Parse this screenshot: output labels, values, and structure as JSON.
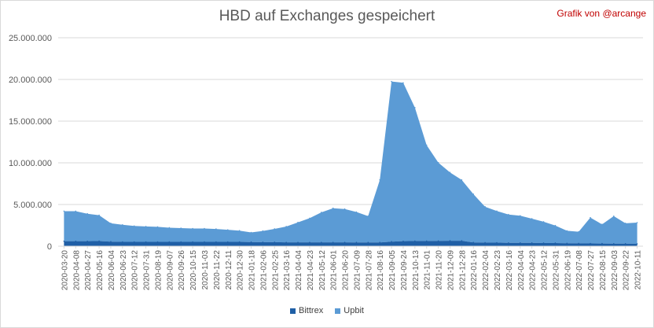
{
  "credit": "Grafik von @arcange",
  "colors": {
    "bittrex": "#1f5fa6",
    "upbit": "#5b9bd5",
    "grid": "#d9d9d9",
    "text": "#595959"
  },
  "chart_data": {
    "type": "area",
    "stacked": true,
    "title": "HBD auf Exchanges gespeichert",
    "xlabel": "",
    "ylabel": "",
    "ylim": [
      0,
      25000000
    ],
    "y_ticks": [
      "0",
      "5.000.000",
      "10.000.000",
      "15.000.000",
      "20.000.000",
      "25.000.000"
    ],
    "grid": "horizontal",
    "legend_position": "bottom",
    "x": [
      "2020-03-20",
      "2020-04-08",
      "2020-04-27",
      "2020-05-16",
      "2020-06-04",
      "2020-06-23",
      "2020-07-12",
      "2020-07-31",
      "2020-08-19",
      "2020-09-07",
      "2020-09-26",
      "2020-10-15",
      "2020-11-03",
      "2020-11-22",
      "2020-12-11",
      "2020-12-30",
      "2021-01-18",
      "2021-02-06",
      "2021-02-25",
      "2021-03-16",
      "2021-04-04",
      "2021-04-23",
      "2021-05-12",
      "2021-06-01",
      "2021-06-20",
      "2021-07-09",
      "2021-07-28",
      "2021-08-16",
      "2021-09-05",
      "2021-09-24",
      "2021-10-13",
      "2021-11-01",
      "2021-11-20",
      "2021-12-09",
      "2021-12-28",
      "2022-01-16",
      "2022-02-04",
      "2022-02-23",
      "2022-03-16",
      "2022-04-04",
      "2022-04-23",
      "2022-05-12",
      "2022-05-31",
      "2022-06-19",
      "2022-07-08",
      "2022-07-27",
      "2022-08-15",
      "2022-09-03",
      "2022-09-22",
      "2022-10-11"
    ],
    "series": [
      {
        "name": "Bittrex",
        "values": [
          600000,
          600000,
          600000,
          620000,
          550000,
          520000,
          520000,
          520000,
          520000,
          520000,
          520000,
          520000,
          520000,
          520000,
          520000,
          520000,
          500000,
          480000,
          480000,
          460000,
          460000,
          460000,
          460000,
          460000,
          460000,
          450000,
          450000,
          450000,
          550000,
          600000,
          620000,
          620000,
          630000,
          650000,
          650000,
          450000,
          430000,
          420000,
          400000,
          400000,
          400000,
          380000,
          380000,
          350000,
          340000,
          330000,
          320000,
          300000,
          300000,
          280000
        ]
      },
      {
        "name": "Upbit",
        "values": [
          3600000,
          3600000,
          3300000,
          3100000,
          2200000,
          2050000,
          1900000,
          1850000,
          1800000,
          1700000,
          1650000,
          1600000,
          1600000,
          1550000,
          1450000,
          1350000,
          1150000,
          1350000,
          1600000,
          1900000,
          2400000,
          2900000,
          3600000,
          4100000,
          4000000,
          3650000,
          3150000,
          7500000,
          19200000,
          19000000,
          16000000,
          11500000,
          9400000,
          8200000,
          7300000,
          5800000,
          4300000,
          3800000,
          3400000,
          3250000,
          2900000,
          2550000,
          2100000,
          1500000,
          1400000,
          3100000,
          2300000,
          3300000,
          2450000,
          2550000
        ]
      }
    ]
  },
  "legend": {
    "bittrex": "Bittrex",
    "upbit": "Upbit"
  }
}
